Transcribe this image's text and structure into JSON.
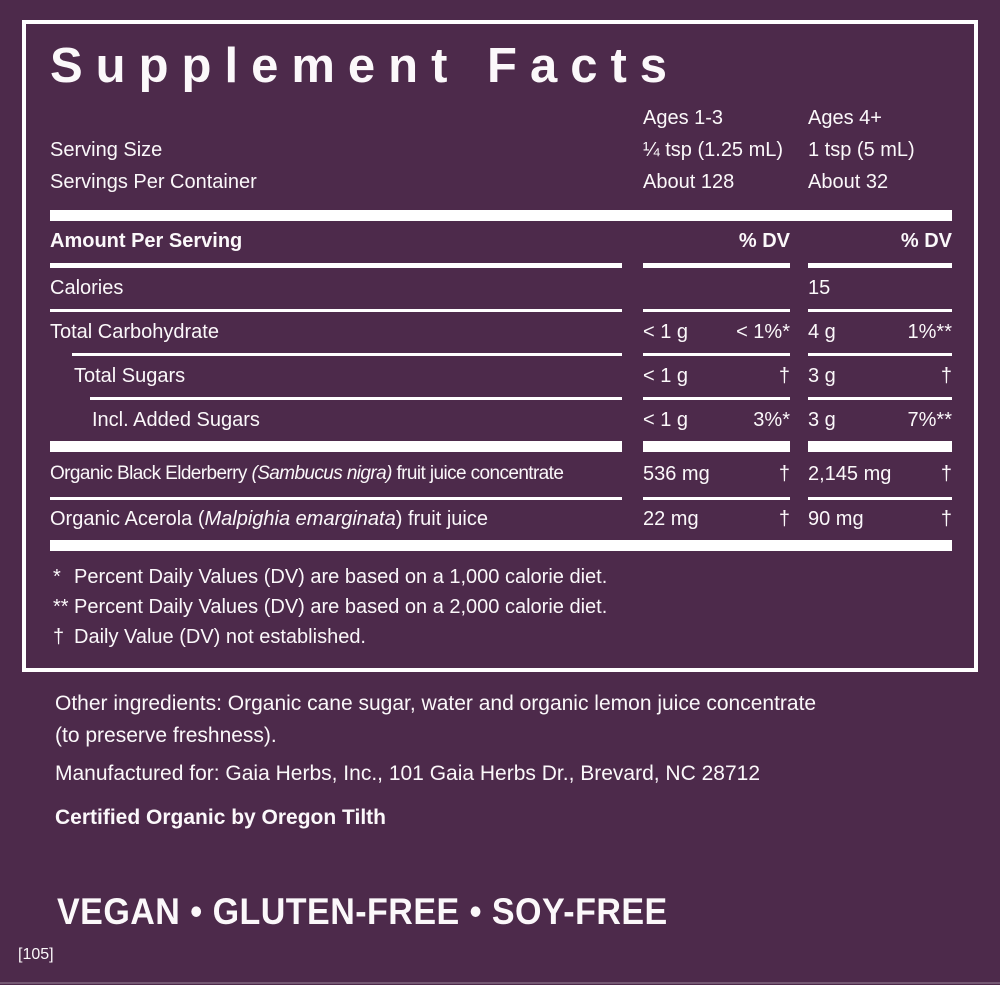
{
  "colors": {
    "background": "#4D2A4B",
    "text": "#FBF8FA",
    "rule": "#FFFFFF"
  },
  "panel": {
    "title": "Supplement Facts",
    "age_columns": {
      "col1": "Ages 1-3",
      "col2": "Ages 4+"
    },
    "serving": {
      "size_label": "Serving Size",
      "size_col1": "¼ tsp (1.25 mL)",
      "size_col2": "1 tsp (5 mL)",
      "per_container_label": "Servings Per Container",
      "per_container_col1": "About 128",
      "per_container_col2": "About 32"
    },
    "header": {
      "amount_label": "Amount Per Serving",
      "dv1": "% DV",
      "dv2": "% DV"
    },
    "rows": [
      {
        "name_pre": "Calories",
        "c1_amount": "",
        "c1_dv": "",
        "c2_amount": "15",
        "c2_dv": ""
      },
      {
        "name_pre": "Total Carbohydrate",
        "c1_amount": "< 1 g",
        "c1_dv": "< 1%*",
        "c2_amount": "4 g",
        "c2_dv": "1%**"
      },
      {
        "name_pre": "Total Sugars",
        "c1_amount": "< 1 g",
        "c1_dv": "†",
        "c2_amount": "3 g",
        "c2_dv": "†"
      },
      {
        "name_pre": "Incl. Added Sugars",
        "c1_amount": "< 1 g",
        "c1_dv": "3%*",
        "c2_amount": "3 g",
        "c2_dv": "7%**"
      },
      {
        "name_pre": "Organic Black Elderberry ",
        "name_italic": "(Sambucus nigra)",
        "name_post": " fruit juice concentrate",
        "c1_amount": "536 mg",
        "c1_dv": "†",
        "c2_amount": "2,145 mg",
        "c2_dv": "†"
      },
      {
        "name_pre": "Organic Acerola (",
        "name_italic": "Malpighia emarginata",
        "name_post": ") fruit juice",
        "c1_amount": "22 mg",
        "c1_dv": "†",
        "c2_amount": "90 mg",
        "c2_dv": "†"
      }
    ],
    "footnotes": [
      {
        "marker": "*",
        "text": "Percent Daily Values (DV) are based on a 1,000 calorie diet."
      },
      {
        "marker": "**",
        "text": "Percent Daily Values (DV) are based on a 2,000 calorie diet."
      },
      {
        "marker": "†",
        "text": "Daily Value (DV) not established."
      }
    ]
  },
  "below": {
    "other_ingredients_line1": "Other ingredients: Organic cane sugar, water and organic lemon juice concentrate",
    "other_ingredients_line2": "(to preserve freshness).",
    "manufactured": "Manufactured for: Gaia Herbs, Inc., 101 Gaia Herbs Dr., Brevard, NC 28712",
    "certified": "Certified Organic by Oregon Tilth",
    "badges_line": "VEGAN • GLUTEN-FREE • SOY-FREE",
    "footer_code": "[105]"
  }
}
